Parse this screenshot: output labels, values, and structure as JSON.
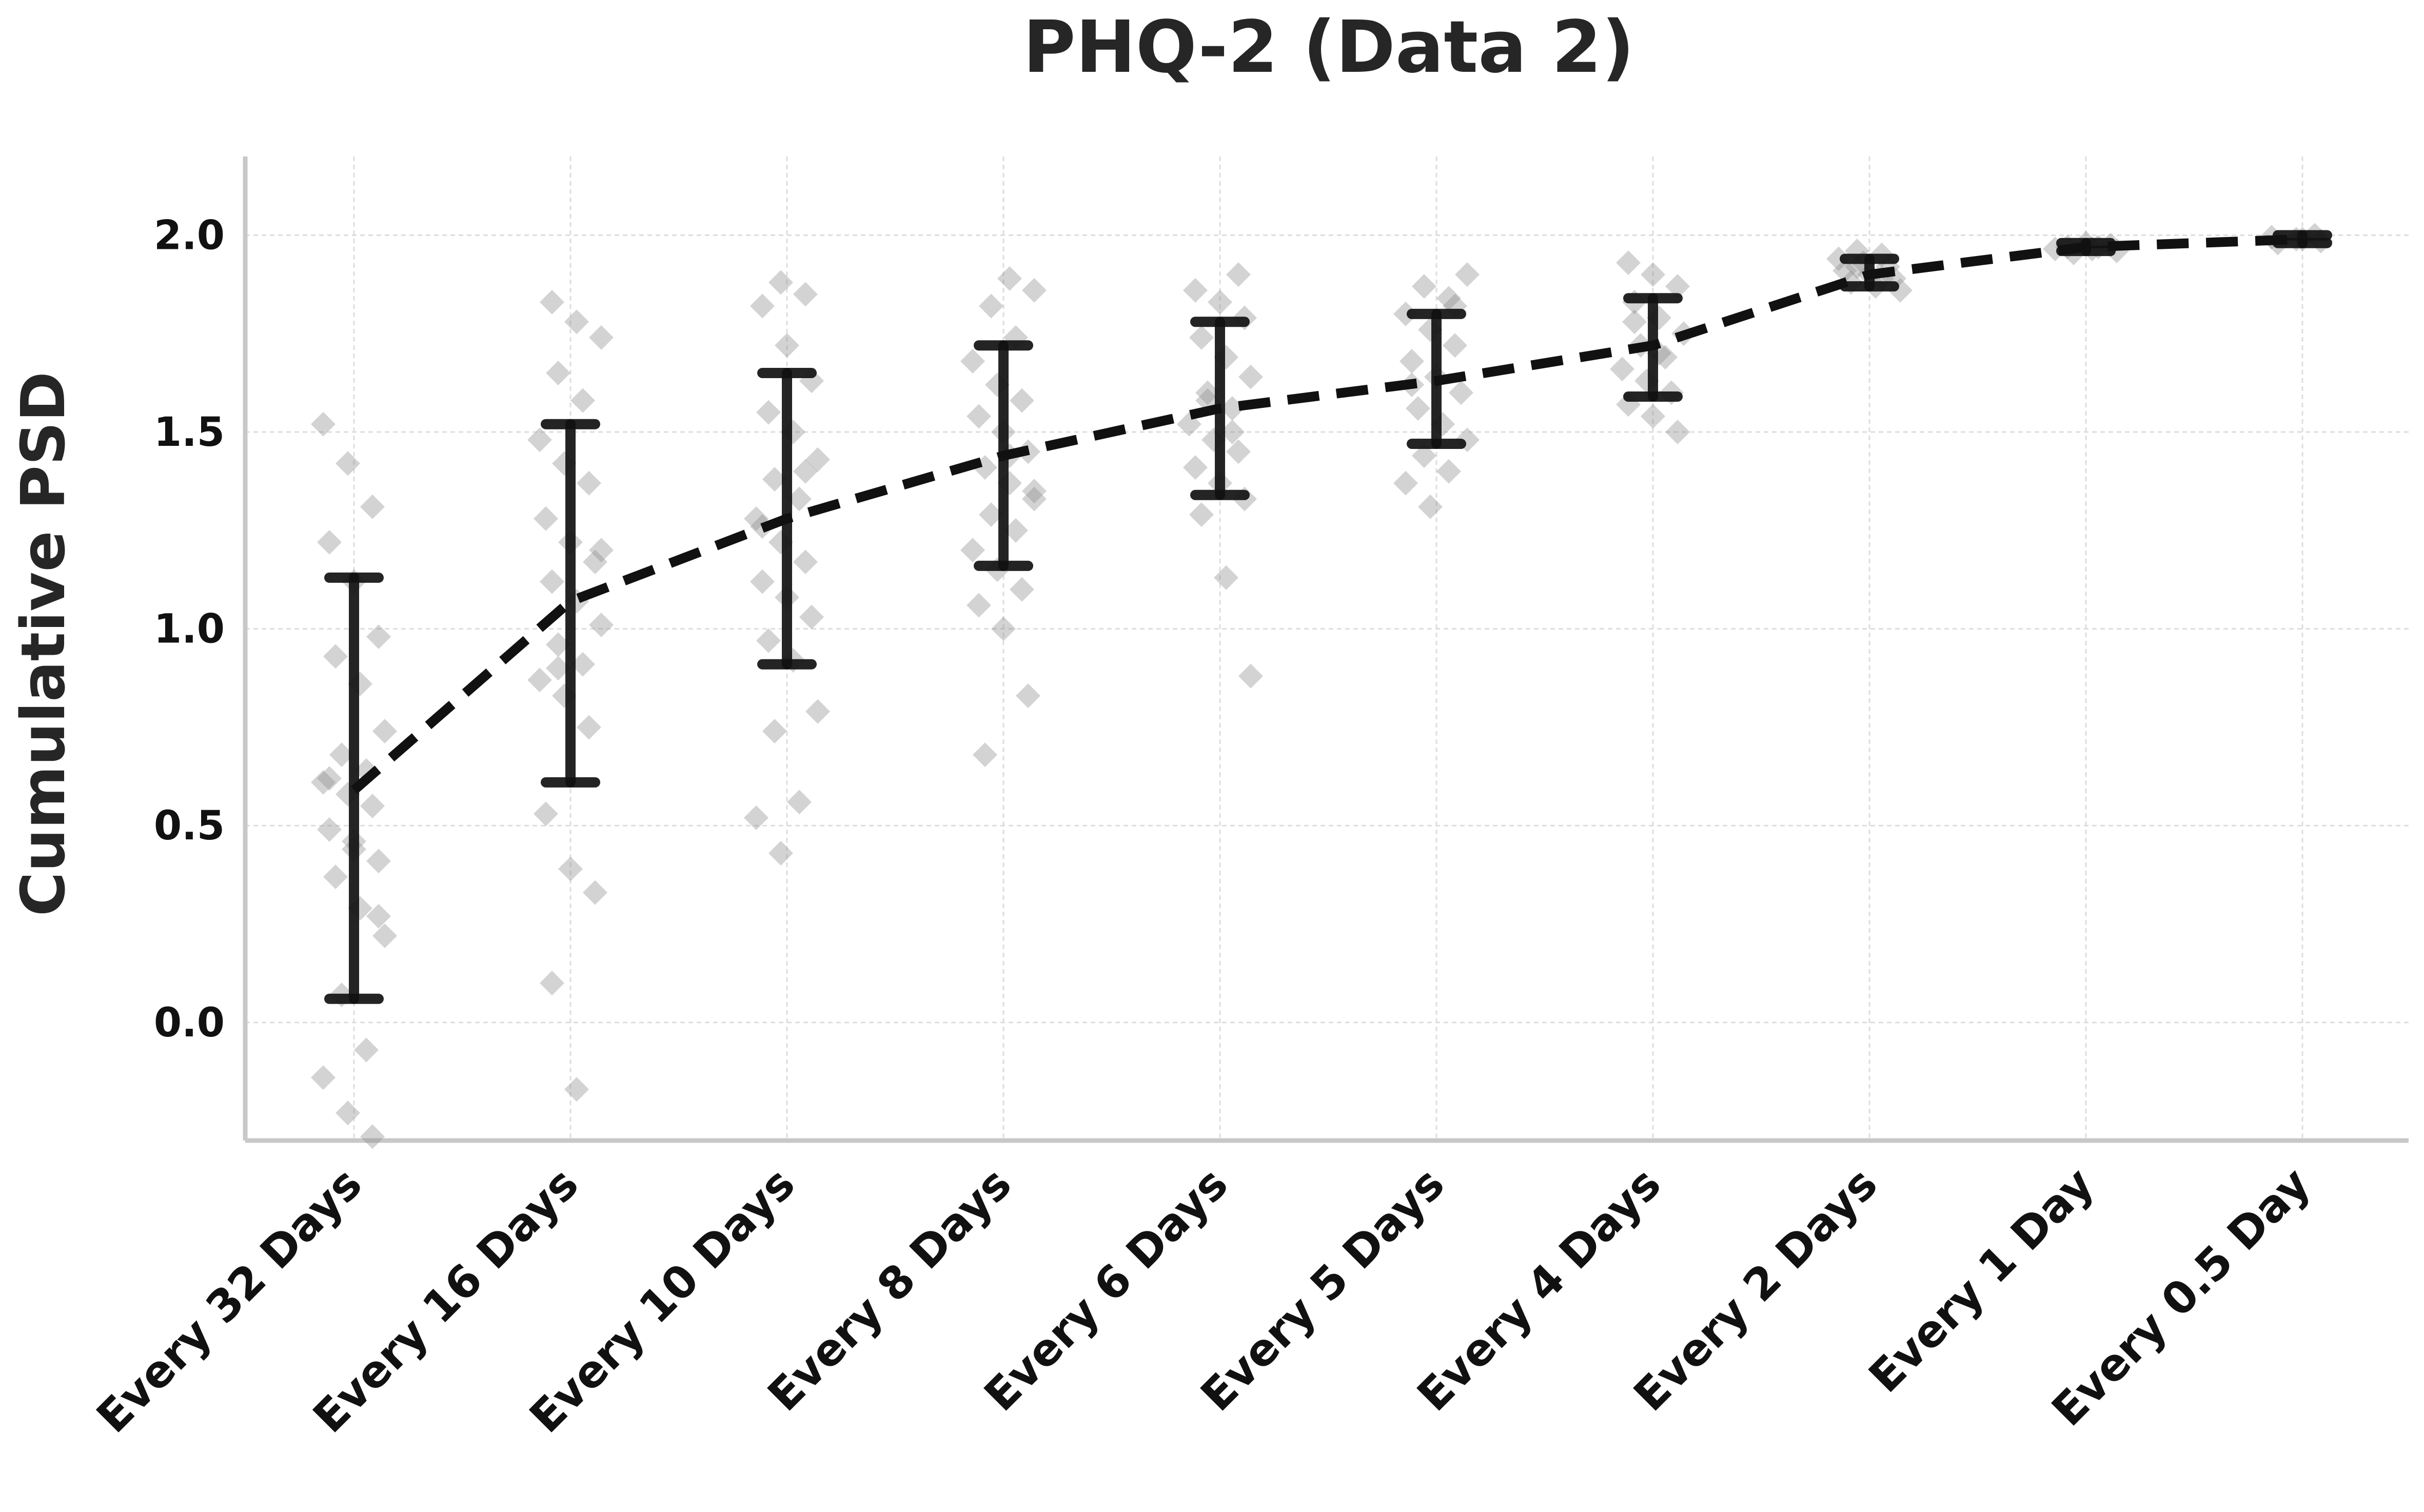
{
  "chart_data": {
    "type": "line",
    "title": "PHQ-2 (Data 2)",
    "xlabel": "",
    "ylabel": "Cumulative PSD",
    "categories": [
      "Every 32 Days",
      "Every 16 Days",
      "Every 10 Days",
      "Every 8 Days",
      "Every 6 Days",
      "Every 5 Days",
      "Every 4 Days",
      "Every 2 Days",
      "Every 1 Day",
      "Every 0.5 Day"
    ],
    "yticks": [
      "0.0",
      "0.5",
      "1.0",
      "1.5",
      "2.0"
    ],
    "ylim": [
      -0.3,
      2.2
    ],
    "grid": true,
    "mean": [
      0.59,
      1.07,
      1.28,
      1.44,
      1.56,
      1.63,
      1.72,
      1.9,
      1.97,
      1.99
    ],
    "error_low": [
      0.06,
      0.61,
      0.91,
      1.16,
      1.34,
      1.47,
      1.59,
      1.87,
      1.96,
      1.98
    ],
    "error_high": [
      1.13,
      1.52,
      1.65,
      1.72,
      1.78,
      1.8,
      1.84,
      1.94,
      1.98,
      2.0
    ],
    "scatter": [
      [
        1.52,
        1.42,
        1.31,
        1.22,
        1.12,
        0.98,
        0.93,
        0.86,
        0.74,
        0.68,
        0.64,
        0.61,
        0.58,
        0.55,
        0.49,
        0.44,
        0.41,
        0.37,
        0.29,
        0.22,
        0.07,
        -0.07,
        -0.14,
        -0.23,
        -0.29,
        0.62,
        0.46,
        0.27
      ],
      [
        1.83,
        1.78,
        1.74,
        1.65,
        1.58,
        1.48,
        1.42,
        1.37,
        1.28,
        1.22,
        1.17,
        1.12,
        1.07,
        1.01,
        0.96,
        0.91,
        0.87,
        0.83,
        0.75,
        0.53,
        0.39,
        0.33,
        0.1,
        -0.17,
        1.2,
        0.9
      ],
      [
        1.88,
        1.85,
        1.82,
        1.72,
        1.63,
        1.55,
        1.5,
        1.43,
        1.38,
        1.33,
        1.28,
        1.22,
        1.17,
        1.12,
        1.08,
        1.03,
        0.97,
        0.92,
        0.79,
        0.74,
        0.56,
        0.52,
        0.43,
        1.4,
        1.26
      ],
      [
        1.89,
        1.86,
        1.82,
        1.74,
        1.68,
        1.62,
        1.58,
        1.54,
        1.5,
        1.45,
        1.41,
        1.37,
        1.33,
        1.29,
        1.25,
        1.2,
        1.15,
        1.1,
        1.06,
        1.0,
        0.83,
        0.68,
        1.44,
        1.35
      ],
      [
        1.9,
        1.86,
        1.83,
        1.79,
        1.74,
        1.69,
        1.64,
        1.6,
        1.56,
        1.52,
        1.48,
        1.45,
        1.41,
        1.37,
        1.33,
        1.29,
        1.13,
        0.88,
        1.58,
        1.5
      ],
      [
        1.9,
        1.87,
        1.84,
        1.8,
        1.76,
        1.72,
        1.68,
        1.64,
        1.6,
        1.56,
        1.52,
        1.48,
        1.44,
        1.4,
        1.37,
        1.31,
        1.82,
        1.62
      ],
      [
        1.93,
        1.9,
        1.87,
        1.83,
        1.79,
        1.75,
        1.72,
        1.69,
        1.66,
        1.63,
        1.6,
        1.57,
        1.54,
        1.5,
        1.78,
        1.7
      ],
      [
        1.96,
        1.95,
        1.94,
        1.93,
        1.92,
        1.91,
        1.9,
        1.89,
        1.88,
        1.87,
        1.86,
        1.92,
        1.89
      ],
      [
        1.98,
        1.975,
        1.97,
        1.965,
        1.96,
        1.955,
        1.97,
        1.965
      ],
      [
        2.0,
        1.995,
        1.99,
        1.985,
        1.98,
        1.99
      ]
    ],
    "colors": {
      "mean_line": "#111111",
      "error_bar": "#111111",
      "scatter": "#8c8c8c",
      "grid": "#dddddd",
      "spine": "#c8c8c8"
    }
  }
}
